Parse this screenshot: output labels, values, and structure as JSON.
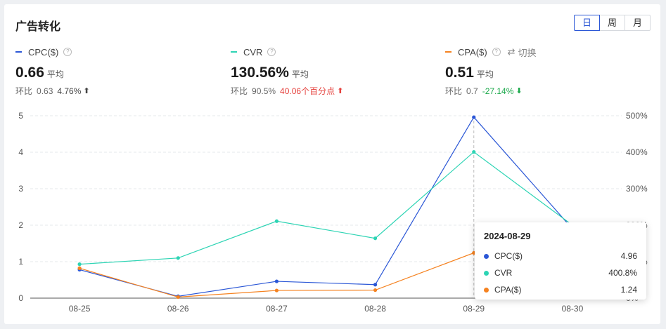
{
  "title": "广告转化",
  "period_toggle": [
    {
      "label": "日",
      "active": true
    },
    {
      "label": "周",
      "active": false
    },
    {
      "label": "月",
      "active": false
    }
  ],
  "metrics": [
    {
      "name": "CPC($)",
      "color": "#2b57d6",
      "value": "0.66",
      "avg_label": "平均",
      "compare_label": "环比",
      "compare_value": "0.63",
      "compare_pct": "4.76%",
      "trend": "up"
    },
    {
      "name": "CVR",
      "color": "#2dd4b4",
      "value": "130.56%",
      "avg_label": "平均",
      "compare_label": "环比",
      "compare_value": "90.5%",
      "compare_pct": "40.06个百分点",
      "trend": "up"
    },
    {
      "name": "CPA($)",
      "color": "#f58220",
      "value": "0.51",
      "avg_label": "平均",
      "compare_label": "环比",
      "compare_value": "0.7",
      "compare_pct": "-27.14%",
      "trend": "down",
      "switch_label": "切换"
    }
  ],
  "chart_data": {
    "type": "line",
    "categories": [
      "08-25",
      "08-26",
      "08-27",
      "08-28",
      "08-29",
      "08-30"
    ],
    "y_left_ticks": [
      "0",
      "1",
      "2",
      "3",
      "4",
      "5"
    ],
    "y_right_ticks": [
      "0%",
      "100%",
      "200%",
      "300%",
      "400%",
      "500%"
    ],
    "ylim_left": [
      0,
      5
    ],
    "ylim_right": [
      0,
      500
    ],
    "grid": true,
    "series": [
      {
        "name": "CPC($)",
        "color": "#2b57d6",
        "axis": "left",
        "values": [
          0.78,
          0.05,
          0.46,
          0.37,
          4.96,
          1.9
        ]
      },
      {
        "name": "CVR",
        "color": "#2dd4b4",
        "axis": "right",
        "values": [
          93,
          110,
          211,
          164,
          400.8,
          200
        ]
      },
      {
        "name": "CPA($)",
        "color": "#f58220",
        "axis": "left",
        "values": [
          0.82,
          0.03,
          0.21,
          0.22,
          1.24,
          1.1
        ]
      }
    ],
    "tooltip": {
      "date": "2024-08-29",
      "rows": [
        {
          "name": "CPC($)",
          "value": "4.96",
          "color": "#2b57d6"
        },
        {
          "name": "CVR",
          "value": "400.8%",
          "color": "#2dd4b4"
        },
        {
          "name": "CPA($)",
          "value": "1.24",
          "color": "#f58220"
        }
      ]
    }
  }
}
